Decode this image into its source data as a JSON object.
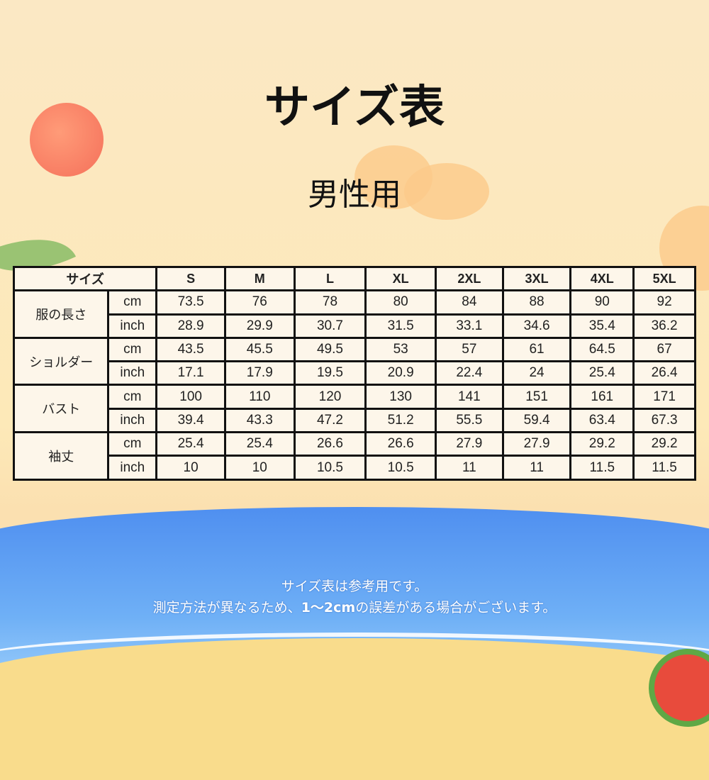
{
  "title": "サイズ表",
  "subtitle": "男性用",
  "table": {
    "corner": "サイズ",
    "sizes": [
      "S",
      "M",
      "L",
      "XL",
      "2XL",
      "3XL",
      "4XL",
      "5XL"
    ],
    "rows": [
      {
        "label": "服の長さ",
        "cm": [
          "73.5",
          "76",
          "78",
          "80",
          "84",
          "88",
          "90",
          "92"
        ],
        "inch": [
          "28.9",
          "29.9",
          "30.7",
          "31.5",
          "33.1",
          "34.6",
          "35.4",
          "36.2"
        ]
      },
      {
        "label": "ショルダー",
        "cm": [
          "43.5",
          "45.5",
          "49.5",
          "53",
          "57",
          "61",
          "64.5",
          "67"
        ],
        "inch": [
          "17.1",
          "17.9",
          "19.5",
          "20.9",
          "22.4",
          "24",
          "25.4",
          "26.4"
        ]
      },
      {
        "label": "バスト",
        "cm": [
          "100",
          "110",
          "120",
          "130",
          "141",
          "151",
          "161",
          "171"
        ],
        "inch": [
          "39.4",
          "43.3",
          "47.2",
          "51.2",
          "55.5",
          "59.4",
          "63.4",
          "67.3"
        ]
      },
      {
        "label": "袖丈",
        "cm": [
          "25.4",
          "25.4",
          "26.6",
          "26.6",
          "27.9",
          "27.9",
          "29.2",
          "29.2"
        ],
        "inch": [
          "10",
          "10",
          "10.5",
          "10.5",
          "11",
          "11",
          "11.5",
          "11.5"
        ]
      }
    ],
    "unit_cm": "cm",
    "unit_inch": "inch"
  },
  "note": {
    "line1": "サイズ表は参考用です。",
    "line2_pre": "測定方法が異なるため、",
    "line2_bold": "1〜2cm",
    "line2_post": "の誤差がある場合がございます。"
  }
}
